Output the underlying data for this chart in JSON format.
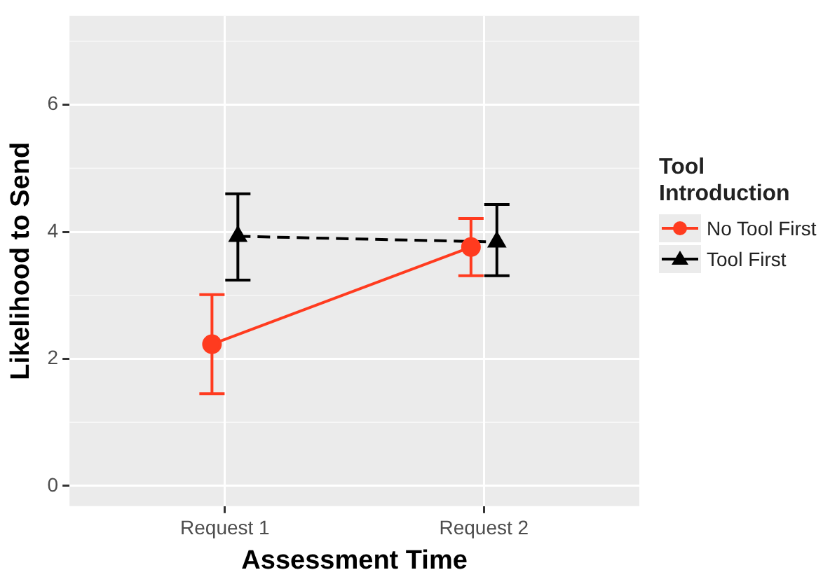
{
  "chart_data": {
    "type": "line",
    "xlabel": "Assessment Time",
    "ylabel": "Likelihood to Send",
    "legend_title": "Tool Introduction",
    "categories": [
      "Request 1",
      "Request 2"
    ],
    "series": [
      {
        "name": "No Tool First",
        "color": "#ff3b1f",
        "values": [
          2.23,
          3.76
        ],
        "errors": [
          [
            1.45,
            3.01
          ],
          [
            3.31,
            4.21
          ]
        ],
        "marker": "circle",
        "line_style": "solid"
      },
      {
        "name": "Tool First",
        "color": "#000000",
        "values": [
          3.93,
          3.84
        ],
        "errors": [
          [
            3.24,
            4.6
          ],
          [
            3.31,
            4.43
          ]
        ],
        "marker": "triangle",
        "line_style": "dashed"
      }
    ],
    "ylim": [
      -0.32,
      7.4
    ],
    "yticks": [
      0,
      2,
      4,
      6
    ],
    "grid": true,
    "legend": "right"
  }
}
